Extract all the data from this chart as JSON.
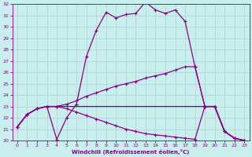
{
  "xlabel": "Windchill (Refroidissement éolien,°C)",
  "background_color": "#c8eeee",
  "grid_color": "#b0d0d0",
  "line_color": "#880088",
  "xlim": [
    -0.5,
    23.5
  ],
  "ylim": [
    20,
    32
  ],
  "yticks": [
    20,
    21,
    22,
    23,
    24,
    25,
    26,
    27,
    28,
    29,
    30,
    31,
    32
  ],
  "xticks": [
    0,
    1,
    2,
    3,
    4,
    5,
    6,
    7,
    8,
    9,
    10,
    11,
    12,
    13,
    14,
    15,
    16,
    17,
    18,
    19,
    20,
    21,
    22,
    23
  ],
  "line1_x": [
    0,
    1,
    2,
    3,
    4,
    5,
    6,
    7,
    8,
    9,
    10,
    11,
    12,
    13,
    14,
    15,
    16,
    17,
    18,
    19,
    20,
    21,
    22,
    23
  ],
  "line1_y": [
    21.2,
    22.3,
    22.8,
    23.0,
    20.1,
    22.0,
    23.2,
    27.4,
    29.7,
    31.3,
    30.8,
    31.1,
    31.2,
    32.2,
    31.5,
    31.2,
    31.5,
    30.5,
    26.5,
    23.0,
    23.0,
    20.8,
    20.2,
    20.0
  ],
  "line2_x": [
    0,
    1,
    2,
    3,
    4,
    5,
    6,
    7,
    8,
    9,
    10,
    11,
    12,
    13,
    14,
    15,
    16,
    17,
    18,
    19,
    20,
    21,
    22,
    23
  ],
  "line2_y": [
    21.2,
    22.3,
    22.8,
    23.0,
    23.0,
    23.2,
    23.5,
    23.9,
    24.2,
    24.5,
    24.8,
    25.0,
    25.2,
    25.5,
    25.7,
    25.9,
    26.2,
    26.5,
    26.5,
    23.0,
    23.0,
    20.8,
    20.2,
    20.0
  ],
  "line3_x": [
    0,
    1,
    2,
    3,
    4,
    19,
    20,
    21,
    22,
    23
  ],
  "line3_y": [
    21.2,
    22.3,
    22.8,
    23.0,
    23.0,
    23.0,
    23.0,
    20.8,
    20.2,
    20.0
  ],
  "line4_x": [
    0,
    1,
    2,
    3,
    4,
    5,
    6,
    7,
    8,
    9,
    10,
    11,
    12,
    13,
    14,
    15,
    16,
    17,
    18,
    19,
    20,
    21,
    22,
    23
  ],
  "line4_y": [
    21.2,
    22.3,
    22.8,
    23.0,
    23.0,
    22.8,
    22.5,
    22.2,
    21.9,
    21.6,
    21.3,
    21.0,
    20.8,
    20.6,
    20.5,
    20.4,
    20.3,
    20.2,
    20.1,
    23.0,
    23.0,
    20.8,
    20.2,
    20.0
  ]
}
